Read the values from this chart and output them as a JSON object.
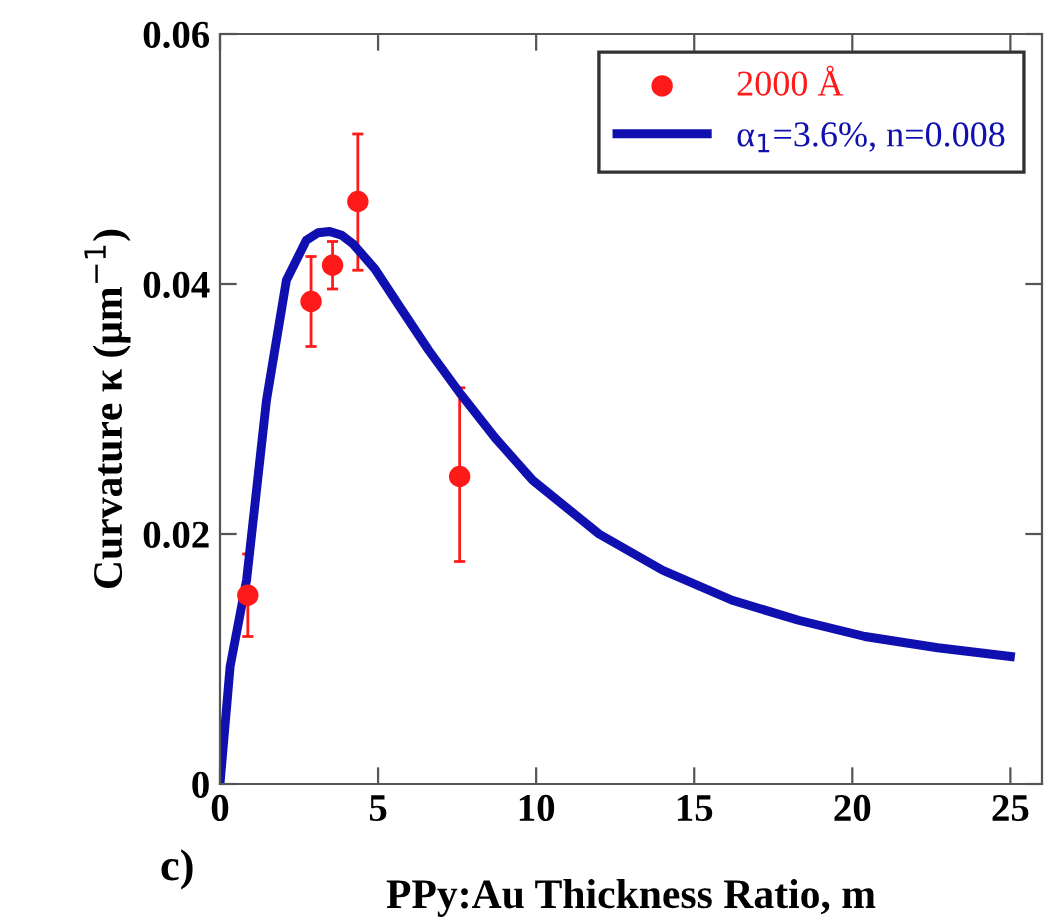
{
  "chart_data": {
    "type": "scatter",
    "xlabel": "PPy:Au Thickness Ratio, m",
    "ylabel": "Curvature κ (μm$^{−1}$)",
    "annotations": [
      "c)"
    ],
    "xlim": [
      0,
      26
    ],
    "ylim": [
      0,
      0.06
    ],
    "xticks": [
      0,
      5,
      10,
      15,
      20,
      25
    ],
    "yticks": [
      0,
      0.02,
      0.04,
      0.06
    ],
    "grid": false,
    "legend": "top right",
    "series": [
      {
        "name": "2000 Å",
        "color": "#ff1a1a",
        "marker": "circle",
        "x": [
          0.88,
          2.88,
          3.56,
          4.36,
          7.58
        ],
        "values": [
          0.0151,
          0.0386,
          0.0415,
          0.0466,
          0.0246
        ],
        "errors": [
          [
            0.0118,
            0.0184
          ],
          [
            0.035,
            0.0422
          ],
          [
            0.0396,
            0.0434
          ],
          [
            0.0411,
            0.052
          ],
          [
            0.0178,
            0.0317
          ]
        ]
      },
      {
        "name": "α$_{1}$=3.6%, n=0.008",
        "type": "line",
        "color": "#1010b0",
        "line_style": "solid",
        "marker": "none",
        "x": [
          0,
          0.32,
          0.84,
          1.47,
          2.1,
          2.73,
          3.1,
          3.47,
          3.85,
          4.21,
          4.9,
          5.68,
          6.6,
          7.58,
          8.7,
          9.89,
          11.99,
          14,
          16.2,
          18.3,
          20.4,
          22.7,
          25
        ],
        "values": [
          0,
          0.0094,
          0.0163,
          0.0307,
          0.0403,
          0.0435,
          0.0441,
          0.0442,
          0.0439,
          0.0432,
          0.0412,
          0.0382,
          0.0347,
          0.0313,
          0.0277,
          0.0243,
          0.02,
          0.0171,
          0.0147,
          0.0131,
          0.0118,
          0.0109,
          0.0102
        ]
      }
    ]
  }
}
